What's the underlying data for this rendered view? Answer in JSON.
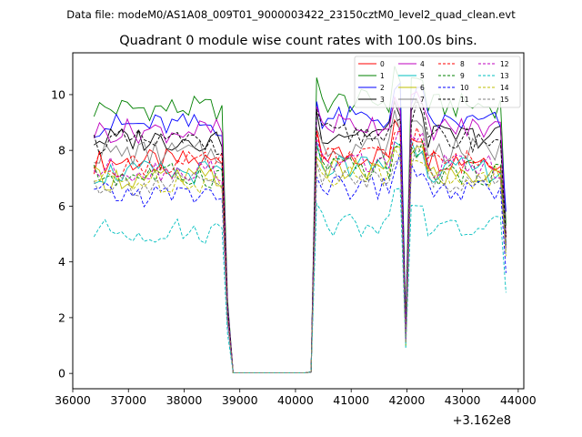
{
  "chart_data": {
    "type": "line",
    "suptitle": "Data file: modeM0/AS1A08_009T01_9000003422_23150cztM0_level2_quad_clean.evt",
    "title": "Quadrant 0 module wise count rates with 100.0s bins.",
    "xlabel": "",
    "ylabel": "",
    "x_offset_label": "+3.162e8",
    "xlim": [
      36000,
      44100
    ],
    "ylim": [
      -0.55,
      11.5
    ],
    "xticks": [
      36000,
      37000,
      38000,
      39000,
      40000,
      41000,
      42000,
      43000,
      44000
    ],
    "yticks": [
      0,
      2,
      4,
      6,
      8,
      10
    ],
    "legend_position": "upper-right",
    "legend_columns": 4,
    "segments": [
      {
        "x_start": 36380,
        "x_end": 38680,
        "n": 24,
        "role": "data"
      },
      {
        "x_start": 38780,
        "x_end": 38880,
        "n": 2,
        "role": "drop"
      },
      {
        "x_start": 38880,
        "x_end": 40180,
        "n": 14,
        "role": "zero"
      },
      {
        "x_start": 40280,
        "x_end": 40380,
        "n": 2,
        "role": "rise"
      },
      {
        "x_start": 40480,
        "x_end": 41880,
        "n": 15,
        "role": "data"
      },
      {
        "x_start": 41980,
        "x_end": 41980,
        "n": 1,
        "role": "dip"
      },
      {
        "x_start": 42080,
        "x_end": 43680,
        "n": 17,
        "role": "data"
      },
      {
        "x_start": 43780,
        "x_end": 43780,
        "n": 1,
        "role": "end"
      }
    ],
    "series": [
      {
        "name": "0",
        "color": "#ff0000",
        "dash": "solid",
        "base": 7.6,
        "dip": 1.4,
        "end": 5.0
      },
      {
        "name": "1",
        "color": "#008000",
        "dash": "solid",
        "base": 9.5,
        "dip": 1.9,
        "end": 5.3
      },
      {
        "name": "2",
        "color": "#0000ff",
        "dash": "solid",
        "base": 8.9,
        "dip": 1.5,
        "end": 5.8
      },
      {
        "name": "3",
        "color": "#000000",
        "dash": "solid",
        "base": 8.4,
        "dip": 1.3,
        "end": 4.6
      },
      {
        "name": "4",
        "color": "#bf00bf",
        "dash": "solid",
        "base": 8.7,
        "dip": 1.2,
        "end": 4.9
      },
      {
        "name": "5",
        "color": "#00bfbf",
        "dash": "solid",
        "base": 7.2,
        "dip": 1.0,
        "end": 4.5
      },
      {
        "name": "6",
        "color": "#bfbf00",
        "dash": "solid",
        "base": 7.0,
        "dip": 1.1,
        "end": 4.4
      },
      {
        "name": "7",
        "color": "#808080",
        "dash": "solid",
        "base": 7.9,
        "dip": 1.2,
        "end": 4.7
      },
      {
        "name": "8",
        "color": "#ff0000",
        "dash": "dashed",
        "base": 7.5,
        "dip": 1.3,
        "end": 4.8
      },
      {
        "name": "9",
        "color": "#008000",
        "dash": "dashed",
        "base": 7.1,
        "dip": 1.2,
        "end": 4.6
      },
      {
        "name": "10",
        "color": "#0000ff",
        "dash": "dashed",
        "base": 6.4,
        "dip": 1.1,
        "end": 3.6
      },
      {
        "name": "11",
        "color": "#000000",
        "dash": "dashed",
        "base": 8.3,
        "dip": 1.4,
        "end": 4.9
      },
      {
        "name": "12",
        "color": "#bf00bf",
        "dash": "dashed",
        "base": 7.3,
        "dip": 1.2,
        "end": 4.5
      },
      {
        "name": "13",
        "color": "#00bfbf",
        "dash": "dashed",
        "base": 5.1,
        "dip": 0.9,
        "end": 2.9
      },
      {
        "name": "14",
        "color": "#bfbf00",
        "dash": "dashed",
        "base": 6.9,
        "dip": 1.0,
        "end": 4.2
      },
      {
        "name": "15",
        "color": "#808080",
        "dash": "dashed",
        "base": 6.8,
        "dip": 1.1,
        "end": 4.3
      }
    ]
  }
}
